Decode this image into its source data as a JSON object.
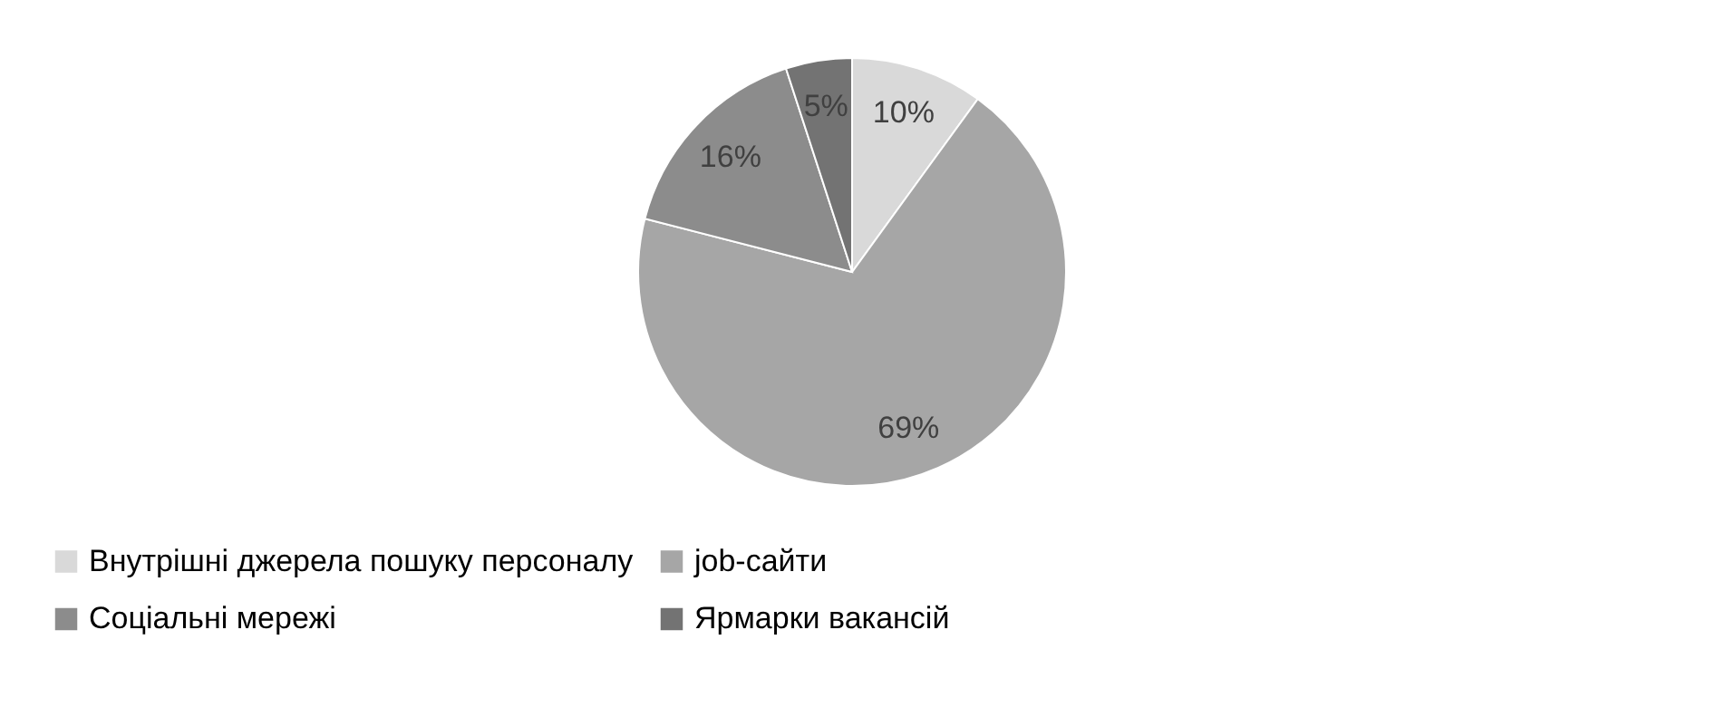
{
  "chart_data": {
    "type": "pie",
    "categories": [
      "Внутрішні джерела пошуку персоналу",
      "job-сайти",
      "Соціальні мережі",
      "Ярмарки вакансій"
    ],
    "values": [
      10,
      69,
      16,
      5
    ],
    "colors": [
      "#d9d9d9",
      "#a6a6a6",
      "#8c8c8c",
      "#737373"
    ],
    "value_labels": [
      "10%",
      "69%",
      "16%",
      "5%"
    ],
    "legend": "bottom"
  }
}
